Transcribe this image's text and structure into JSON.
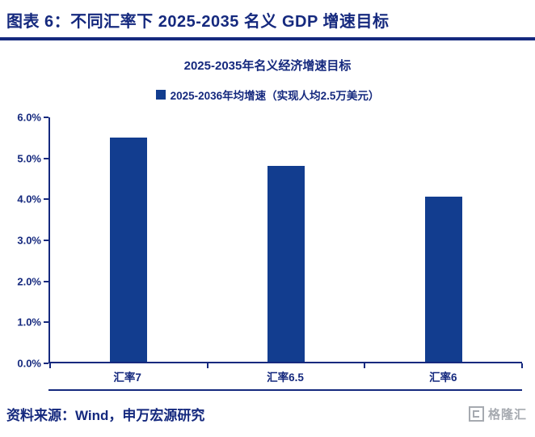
{
  "header": {
    "title": "图表 6：不同汇率下 2025-2035 名义 GDP 增速目标"
  },
  "chart": {
    "title": "2025-2035年名义经济增速目标",
    "legend_label": "2025-2036年均增速（实现人均2.5万美元）"
  },
  "footer": {
    "source": "资料来源：Wind，申万宏源研究",
    "logo_text": "格隆汇"
  },
  "colors": {
    "primary_text": "#15297e",
    "bar": "#123d8f",
    "logo_grey": "#a6aab0"
  },
  "chart_data": {
    "type": "bar",
    "title": "2025-2035年名义经济增速目标",
    "legend": [
      "2025-2036年均增速（实现人均2.5万美元）"
    ],
    "categories": [
      "汇率7",
      "汇率6.5",
      "汇率6"
    ],
    "values": [
      5.5,
      4.8,
      4.05
    ],
    "unit": "%",
    "xlabel": "",
    "ylabel": "",
    "ylim": [
      0,
      6
    ],
    "ytick_step": 1,
    "ytick_labels": [
      "0.0%",
      "1.0%",
      "2.0%",
      "3.0%",
      "4.0%",
      "5.0%",
      "6.0%"
    ],
    "grid": false,
    "legend_position": "top"
  }
}
